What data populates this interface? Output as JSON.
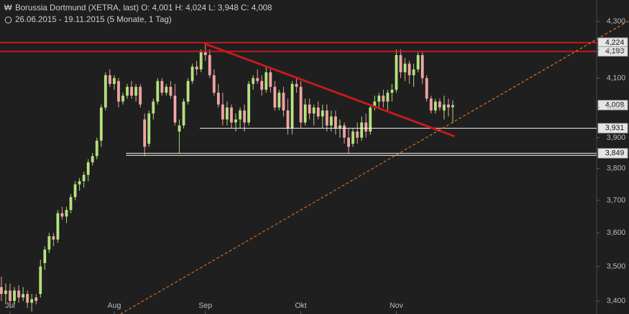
{
  "chart_data": {
    "type": "candlestick",
    "title": "Borussia Dortmund (XETRA, last)  O: 4,001  H: 4,024  L: 3,948  C: 4,008",
    "subtitle": "26.06.2015 - 19.11.2015 (5 Monate, 1 Tag)",
    "log_scale": true,
    "ylim": [
      3363,
      4378
    ],
    "yticks": [
      {
        "value": 3400,
        "label": "3,400"
      },
      {
        "value": 3500,
        "label": "3,500"
      },
      {
        "value": 3600,
        "label": "3,600"
      },
      {
        "value": 3700,
        "label": "3,700"
      },
      {
        "value": 3800,
        "label": "3,800"
      },
      {
        "value": 3900,
        "label": "3,900"
      },
      {
        "value": 4000,
        "label": "4,000"
      },
      {
        "value": 4100,
        "label": "4,100"
      },
      {
        "value": 4200,
        "label": "4,200"
      },
      {
        "value": 4300,
        "label": "4,300"
      }
    ],
    "up_color": "#b4e07c",
    "down_color": "#f0a3a3",
    "categories": [
      null,
      null,
      "Jul",
      null,
      null,
      null,
      null,
      null,
      null,
      null,
      null,
      null,
      null,
      null,
      null,
      null,
      null,
      null,
      null,
      null,
      null,
      null,
      null,
      null,
      null,
      null,
      "Aug",
      null,
      null,
      null,
      null,
      null,
      null,
      null,
      null,
      null,
      null,
      null,
      null,
      null,
      null,
      null,
      null,
      null,
      null,
      null,
      null,
      "Sep",
      null,
      null,
      null,
      null,
      null,
      null,
      null,
      null,
      null,
      null,
      null,
      null,
      null,
      null,
      null,
      null,
      null,
      null,
      null,
      null,
      null,
      "Okt",
      null,
      null,
      null,
      null,
      null,
      null,
      null,
      null,
      null,
      null,
      null,
      null,
      null,
      null,
      null,
      null,
      null,
      null,
      null,
      null,
      null,
      "Nov",
      null,
      null,
      null,
      null,
      null,
      null,
      null,
      null,
      null,
      null,
      null,
      null,
      null
    ],
    "open": [
      3440,
      3420,
      3430,
      3400,
      3430,
      3410,
      3420,
      3395,
      3410,
      3420,
      3510,
      3550,
      3590,
      3580,
      3660,
      3650,
      3670,
      3710,
      3750,
      3760,
      3780,
      3820,
      3840,
      3890,
      4000,
      4110,
      4080,
      4090,
      4020,
      4040,
      4070,
      4040,
      4070,
      3960,
      3880,
      3980,
      4020,
      4090,
      4050,
      4070,
      4040,
      3920,
      3940,
      4020,
      4090,
      4140,
      4130,
      4190,
      4180,
      4110,
      4050,
      4010,
      3960,
      4000,
      3950,
      3960,
      3990,
      3950,
      4080,
      4100,
      4090,
      4060,
      4120,
      4070,
      4000,
      4050,
      3990,
      3930,
      4080,
      4070,
      3950,
      4010,
      3980,
      4000,
      3970,
      3990,
      3940,
      3970,
      3930,
      3940,
      3900,
      3880,
      3920,
      3900,
      3950,
      3920,
      4000,
      4020,
      4040,
      4020,
      4050,
      4060,
      4180,
      4120,
      4150,
      4110,
      4130,
      4180,
      4100,
      4030,
      3990,
      4020,
      3990,
      4010,
      4001
    ],
    "high": [
      3470,
      3450,
      3450,
      3440,
      3445,
      3440,
      3430,
      3420,
      3420,
      3520,
      3560,
      3600,
      3600,
      3670,
      3680,
      3680,
      3720,
      3760,
      3770,
      3790,
      3830,
      3850,
      3900,
      4010,
      4120,
      4130,
      4110,
      4100,
      4050,
      4080,
      4090,
      4080,
      4080,
      3980,
      3990,
      4030,
      4100,
      4100,
      4080,
      4090,
      4080,
      3960,
      4030,
      4100,
      4150,
      4160,
      4200,
      4220,
      4200,
      4130,
      4080,
      4050,
      4020,
      4010,
      3980,
      4000,
      4010,
      4090,
      4110,
      4130,
      4110,
      4140,
      4130,
      4090,
      4060,
      4070,
      4030,
      4090,
      4100,
      4090,
      4030,
      4030,
      4010,
      4020,
      4010,
      4010,
      3990,
      3990,
      3960,
      3950,
      3930,
      3930,
      3950,
      3970,
      3980,
      4010,
      4040,
      4050,
      4060,
      4060,
      4080,
      4200,
      4200,
      4170,
      4160,
      4150,
      4190,
      4190,
      4110,
      4040,
      4030,
      4030,
      4040,
      4030,
      4024
    ],
    "low": [
      3400,
      3390,
      3380,
      3390,
      3395,
      3400,
      3380,
      3370,
      3390,
      3410,
      3490,
      3540,
      3560,
      3570,
      3640,
      3630,
      3660,
      3700,
      3730,
      3740,
      3760,
      3810,
      3830,
      3870,
      3990,
      4070,
      4060,
      4000,
      4010,
      4030,
      4030,
      4020,
      4000,
      3840,
      3870,
      3960,
      4010,
      4040,
      4040,
      4030,
      3940,
      3850,
      3930,
      4010,
      4080,
      4110,
      4120,
      4160,
      4100,
      4040,
      4000,
      3940,
      3940,
      3930,
      3920,
      3930,
      3920,
      3940,
      4060,
      4080,
      4040,
      4050,
      4050,
      3990,
      3990,
      3970,
      3910,
      3910,
      4050,
      3930,
      3940,
      3960,
      3940,
      3960,
      3930,
      3920,
      3920,
      3910,
      3900,
      3880,
      3849,
      3870,
      3880,
      3890,
      3900,
      3910,
      3990,
      4000,
      4000,
      3990,
      4020,
      4050,
      4100,
      4090,
      4080,
      4070,
      4120,
      4080,
      4020,
      3980,
      3980,
      3990,
      3960,
      3970,
      3948
    ],
    "close": [
      3420,
      3430,
      3400,
      3430,
      3410,
      3420,
      3395,
      3405,
      3400,
      3500,
      3550,
      3590,
      3580,
      3660,
      3650,
      3670,
      3710,
      3750,
      3760,
      3780,
      3820,
      3840,
      3890,
      4000,
      4110,
      4080,
      4100,
      4020,
      4040,
      4070,
      4040,
      4070,
      4010,
      3870,
      3980,
      4020,
      4090,
      4050,
      4070,
      4040,
      3950,
      3940,
      4020,
      4090,
      4140,
      4130,
      4190,
      4180,
      4110,
      4050,
      4010,
      3960,
      4000,
      3950,
      3960,
      3990,
      3950,
      4080,
      4100,
      4090,
      4060,
      4120,
      4070,
      4000,
      4050,
      3990,
      3930,
      4080,
      4070,
      3950,
      4010,
      3980,
      4000,
      3970,
      3990,
      3940,
      3970,
      3930,
      3940,
      3900,
      3870,
      3920,
      3900,
      3950,
      3920,
      4000,
      4020,
      4040,
      4020,
      4050,
      4060,
      4180,
      4120,
      4150,
      4110,
      4130,
      4180,
      4100,
      4030,
      3990,
      4020,
      4000,
      4010,
      4000,
      4008
    ],
    "levels": [
      {
        "value": 4224,
        "label": "4,224",
        "color": "#c8191e"
      },
      {
        "value": 4193,
        "label": "4,193",
        "color": "#c8191e"
      },
      {
        "value": 4008,
        "label": "4,008"
      },
      {
        "value": 3931,
        "label": "3,931",
        "color": "#ffffff"
      },
      {
        "value": 3849,
        "label": "3,849",
        "color": "#ffffff"
      }
    ]
  }
}
